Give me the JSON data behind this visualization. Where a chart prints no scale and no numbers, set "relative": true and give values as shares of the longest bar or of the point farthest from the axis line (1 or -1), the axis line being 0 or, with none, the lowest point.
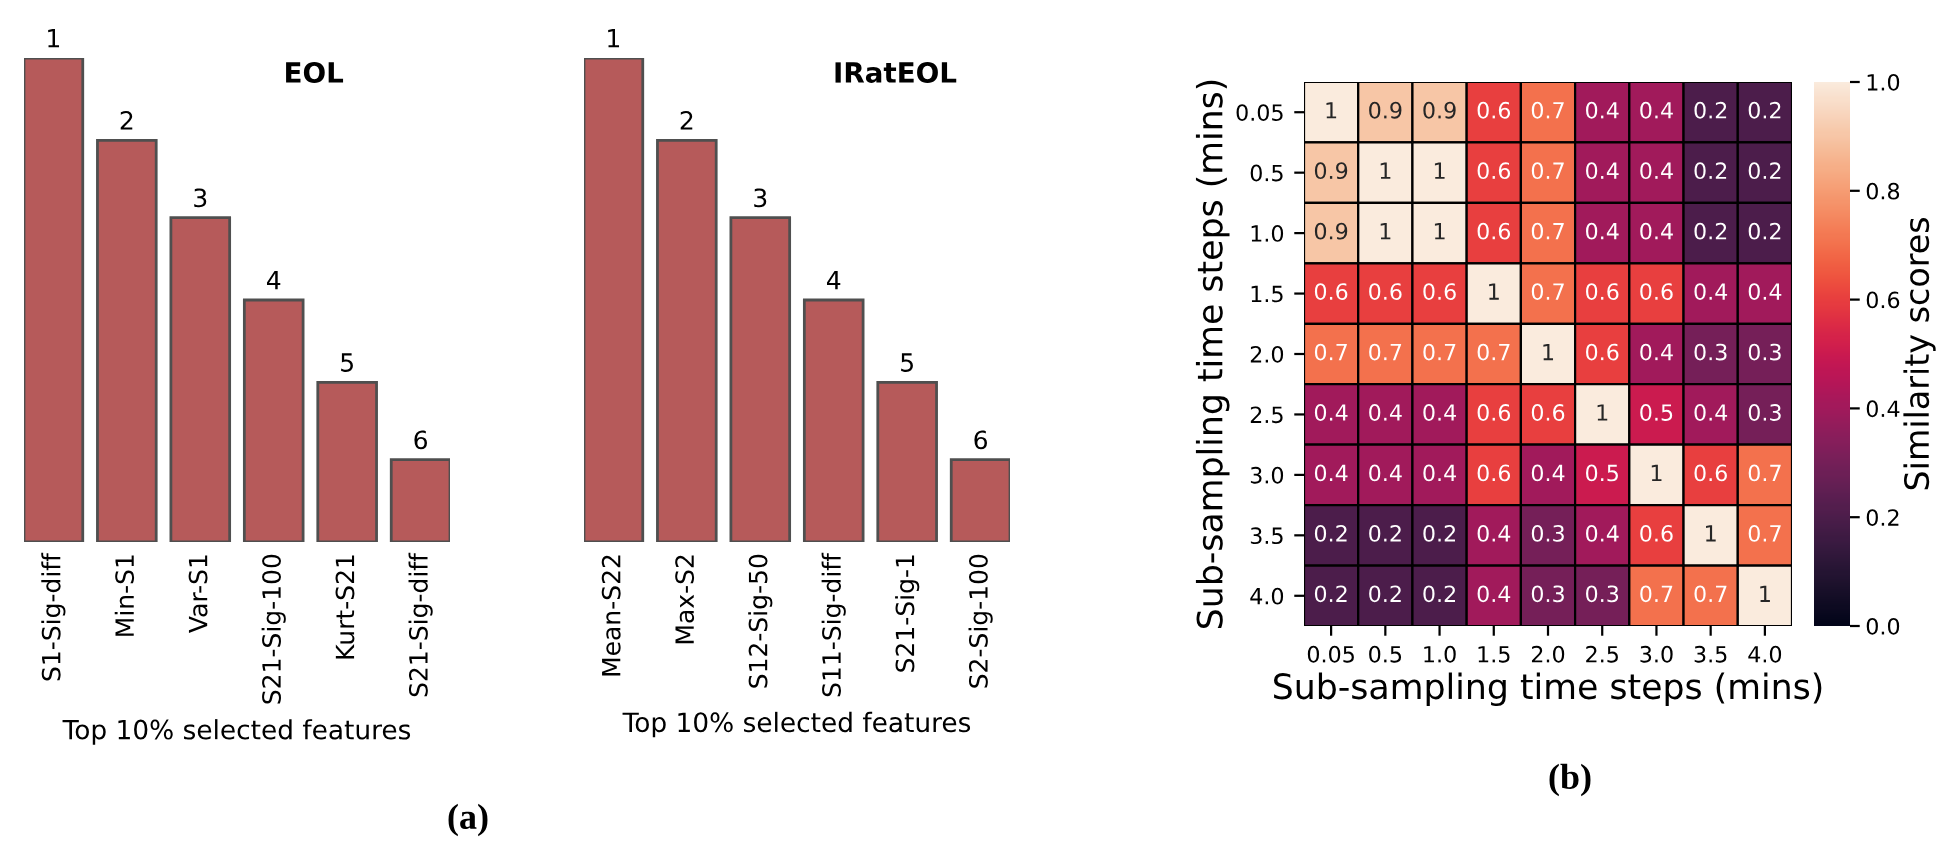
{
  "chart_data": [
    {
      "type": "bar",
      "title": "EOL",
      "xlabel": "Top 10% selected features",
      "categories": [
        "S1-Sig-diff",
        "Min-S1",
        "Var-S1",
        "S21-Sig-100",
        "Kurt-S21",
        "S21-Sig-diff"
      ],
      "values": [
        1,
        0.83,
        0.67,
        0.5,
        0.33,
        0.17
      ],
      "relative": true,
      "color": "#b65a5a",
      "annotations": [
        {
          "text": "1",
          "x": "S1-Sig-diff",
          "y": 1
        },
        {
          "text": "2",
          "x": "Min-S1",
          "y": 0.83
        },
        {
          "text": "3",
          "x": "Var-S1",
          "y": 0.67
        },
        {
          "text": "4",
          "x": "S21-Sig-100",
          "y": 0.5
        },
        {
          "text": "5",
          "x": "Kurt-S21",
          "y": 0.33
        },
        {
          "text": "6",
          "x": "S21-Sig-diff",
          "y": 0.17
        },
        "(a)"
      ]
    },
    {
      "type": "bar",
      "title": "IRatEOL",
      "xlabel": "Top 10% selected features",
      "categories": [
        "Mean-S22",
        "Max-S2",
        "S12-Sig-50",
        "S11-Sig-diff",
        "S21-Sig-1",
        "S2-Sig-100"
      ],
      "values": [
        1,
        0.83,
        0.67,
        0.5,
        0.33,
        0.17
      ],
      "relative": true,
      "color": "#b65a5a",
      "annotations": [
        {
          "text": "1",
          "x": "Mean-S22",
          "y": 1
        },
        {
          "text": "2",
          "x": "Max-S2",
          "y": 0.83
        },
        {
          "text": "3",
          "x": "S12-Sig-50",
          "y": 0.67
        },
        {
          "text": "4",
          "x": "S11-Sig-diff",
          "y": 0.5
        },
        {
          "text": "5",
          "x": "S21-Sig-1",
          "y": 0.33
        },
        {
          "text": "6",
          "x": "S2-Sig-100",
          "y": 0.17
        }
      ]
    },
    {
      "type": "heatmap",
      "xlabel": "Sub-sampling time steps (mins)",
      "ylabel": "Sub-sampling time steps (mins)",
      "clabel": "Similarity scores",
      "categories": [
        "0.05",
        "0.5",
        "1.0",
        "1.5",
        "2.0",
        "2.5",
        "3.0",
        "3.5",
        "4.0"
      ],
      "y_categories": [
        "0.05",
        "0.5",
        "1.0",
        "1.5",
        "2.0",
        "2.5",
        "3.0",
        "3.5",
        "4.0"
      ],
      "cells": [
        [
          1,
          0.9,
          0.9,
          0.6,
          0.7,
          0.4,
          0.4,
          0.2,
          0.2
        ],
        [
          0.9,
          1,
          1,
          0.6,
          0.7,
          0.4,
          0.4,
          0.2,
          0.2
        ],
        [
          0.9,
          1,
          1,
          0.6,
          0.7,
          0.4,
          0.4,
          0.2,
          0.2
        ],
        [
          0.6,
          0.6,
          0.6,
          1,
          0.7,
          0.6,
          0.6,
          0.4,
          0.4
        ],
        [
          0.7,
          0.7,
          0.7,
          0.7,
          1,
          0.6,
          0.4,
          0.3,
          0.3
        ],
        [
          0.4,
          0.4,
          0.4,
          0.6,
          0.6,
          1,
          0.5,
          0.4,
          0.3
        ],
        [
          0.4,
          0.4,
          0.4,
          0.6,
          0.4,
          0.5,
          1,
          0.6,
          0.7
        ],
        [
          0.2,
          0.2,
          0.2,
          0.4,
          0.3,
          0.4,
          0.6,
          1,
          0.7
        ],
        [
          0.2,
          0.2,
          0.2,
          0.4,
          0.3,
          0.3,
          0.7,
          0.7,
          1
        ]
      ],
      "data_labels": true,
      "clim": [
        0,
        1
      ],
      "cticks": [
        {
          "value": 0,
          "label": "0.0"
        },
        {
          "value": 0.2,
          "label": "0.2"
        },
        {
          "value": 0.4,
          "label": "0.4"
        },
        {
          "value": 0.6,
          "label": "0.6"
        },
        {
          "value": 0.8,
          "label": "0.8"
        },
        {
          "value": 1,
          "label": "1.0"
        }
      ],
      "annotations": [
        "(b)"
      ]
    }
  ]
}
